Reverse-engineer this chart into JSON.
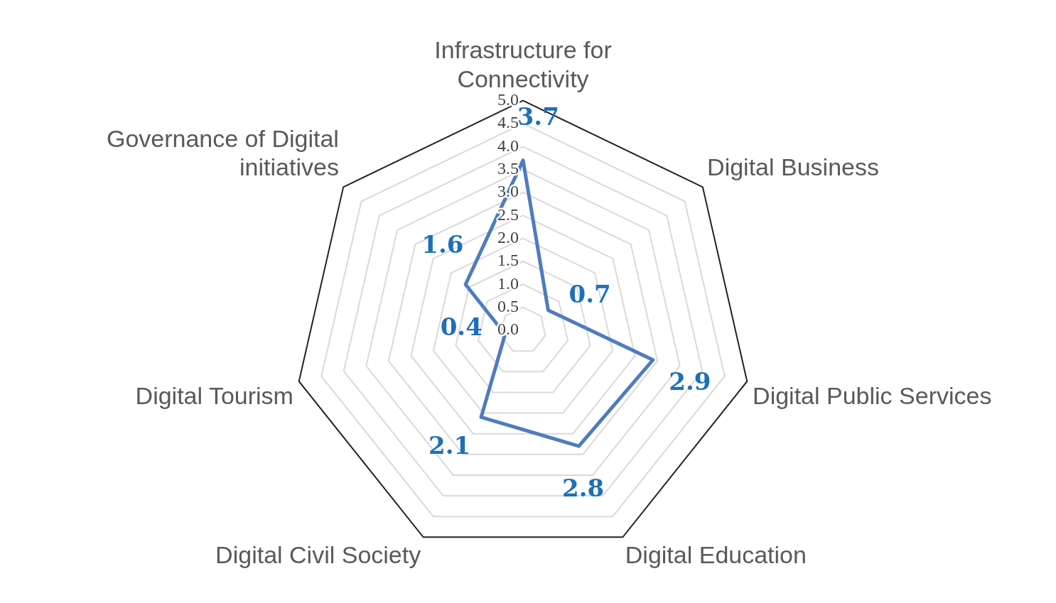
{
  "chart_data": {
    "type": "radar",
    "categories": [
      "Infrastructure for Connectivity",
      "Digital Business",
      "Digital Public Services",
      "Digital Education",
      "Digital Civil Society",
      "Digital Tourism",
      "Governance of Digital initiatives"
    ],
    "series": [
      {
        "color": "#4f7bbf",
        "values": [
          3.7,
          0.7,
          2.9,
          2.8,
          2.1,
          0.4,
          1.6
        ]
      }
    ],
    "ylim": [
      0,
      5
    ],
    "yticks": [
      {
        "value": 0,
        "label": "0.0"
      },
      {
        "value": 0.5,
        "label": "0.5"
      },
      {
        "value": 1,
        "label": "1.0"
      },
      {
        "value": 1.5,
        "label": "1.5"
      },
      {
        "value": 2,
        "label": "2.0"
      },
      {
        "value": 2.5,
        "label": "2.5"
      },
      {
        "value": 3,
        "label": "3.0"
      },
      {
        "value": 3.5,
        "label": "3.5"
      },
      {
        "value": 4,
        "label": "4.0"
      },
      {
        "value": 4.5,
        "label": "4.5"
      },
      {
        "value": 5,
        "label": "5.0"
      }
    ],
    "grid": true,
    "legend": false,
    "marker": "none",
    "line_style": "solid",
    "data_labels": true
  }
}
